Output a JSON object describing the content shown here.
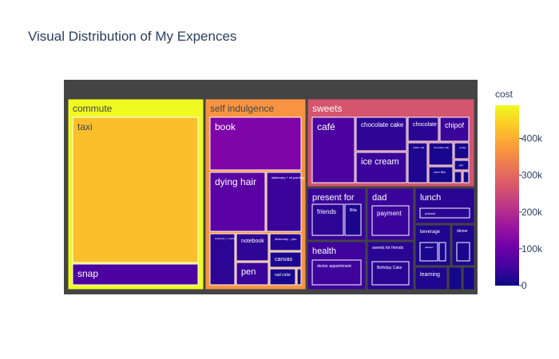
{
  "chart_data": {
    "type": "treemap",
    "title": "Visual Distribution of My Expences",
    "colorbar": {
      "title": "cost",
      "range": [
        0,
        490000
      ],
      "ticks": [
        {
          "value": 0,
          "label": "0"
        },
        {
          "value": 100000,
          "label": "100k"
        },
        {
          "value": 200000,
          "label": "200k"
        },
        {
          "value": 300000,
          "label": "300k"
        },
        {
          "value": 400000,
          "label": "400k"
        }
      ],
      "colorscale": [
        "#0d0887",
        "#46039f",
        "#7201a8",
        "#9c179e",
        "#bd3786",
        "#d8576b",
        "#ed7953",
        "#fb9f3a",
        "#fdca26",
        "#f0f921"
      ]
    },
    "groups": [
      {
        "name": "commute",
        "color": "#f0f921",
        "items": [
          {
            "name": "taxi",
            "color": "#fbbf2b"
          },
          {
            "name": "snap",
            "color": "#4c02a1"
          }
        ]
      },
      {
        "name": "self indulgence",
        "color": "#f89441",
        "items": [
          {
            "name": "book",
            "color": "#7e03a8"
          },
          {
            "name": "dying hair",
            "color": "#5a02a3"
          },
          {
            "name": "stationary + oil painting",
            "color": "#3a049a"
          },
          {
            "name": "stationary + notebook",
            "color": "#2c0594"
          },
          {
            "name": "notebook",
            "color": "#2e0595"
          },
          {
            "name": "dictionary - pen",
            "color": "#240691"
          },
          {
            "name": "canvas",
            "color": "#1d068e"
          },
          {
            "name": "pen",
            "color": "#3a049a"
          },
          {
            "name": "nail color",
            "color": "#1a068d"
          },
          {
            "name": "",
            "color": "#13078b"
          }
        ]
      },
      {
        "name": "sweets",
        "color": "#d5546e",
        "items": [
          {
            "name": "café",
            "color": "#4c02a1"
          },
          {
            "name": "chocolate cake",
            "color": "#2e0595"
          },
          {
            "name": "chocolate",
            "color": "#2a0593"
          },
          {
            "name": "chipof",
            "color": "#3b049a"
          },
          {
            "name": "ice cream",
            "color": "#3a049a"
          },
          {
            "name": "coffee milk",
            "color": "#1e068f"
          },
          {
            "name": "chocolate milk",
            "color": "#1a068d"
          },
          {
            "name": "cookie",
            "color": "#18068c"
          },
          {
            "name": "jelly",
            "color": "#16068c"
          },
          {
            "name": "corn flex",
            "color": "#14078b"
          },
          {
            "name": "",
            "color": "#12078a"
          },
          {
            "name": "",
            "color": "#11078a"
          }
        ]
      },
      {
        "name": "present for",
        "color": "#3a049a",
        "items": [
          {
            "name": "friends",
            "color": "#2c0594"
          },
          {
            "name": "Bita",
            "color": "#1b068d"
          }
        ]
      },
      {
        "name": "dad",
        "color": "#3a049a",
        "items": [
          {
            "name": "payment",
            "color": "#3a049a"
          }
        ]
      },
      {
        "name": "lunch",
        "color": "#2a0593",
        "items": [
          {
            "name": "unicard",
            "color": "#2a0593"
          }
        ]
      },
      {
        "name": "health",
        "color": "#3e049c",
        "items": [
          {
            "name": "doctor appointment",
            "color": "#3e049c"
          }
        ]
      },
      {
        "name": "sweets for friends",
        "color": "#2a0593",
        "items": [
          {
            "name": "Birthday Cake",
            "color": "#2a0593"
          }
        ]
      },
      {
        "name": "beverage",
        "color": "#1e068f",
        "items": [
          {
            "name": "dalaster",
            "color": "#1a068d"
          },
          {
            "name": "",
            "color": "#17068c"
          }
        ]
      },
      {
        "name": "dinner",
        "color": "#1e068f",
        "items": [
          {
            "name": "",
            "color": "#1a068d"
          }
        ]
      },
      {
        "name": "learning",
        "color": "#1e068f",
        "items": []
      },
      {
        "name": "",
        "color": "#16068c",
        "items": []
      },
      {
        "name": "",
        "color": "#14078b",
        "items": []
      }
    ]
  }
}
